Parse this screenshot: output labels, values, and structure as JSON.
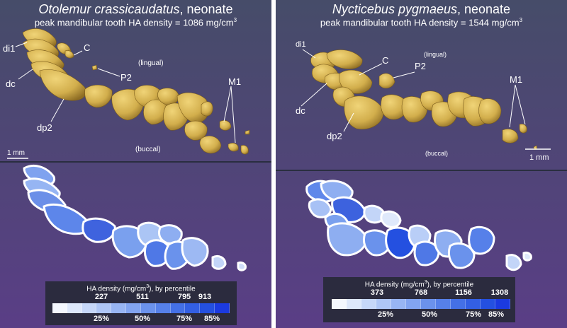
{
  "panels": [
    {
      "species": "Otolemur crassicaudatus",
      "stage": ", neonate",
      "subtitle": "peak mandibular tooth HA density = 1086 mg/cm",
      "superscript": "3",
      "labels": {
        "di1": "di1",
        "c": "C",
        "dc": "dc",
        "p2": "P2",
        "dp2": "dp2",
        "m1": "M1",
        "lingual": "(lingual)",
        "buccal": "(buccal)",
        "scale": "1 mm"
      },
      "legend": {
        "title_a": "HA density (mg/cm",
        "title_sup": "3",
        "title_b": "), by percentile",
        "values": [
          "227",
          "511",
          "795",
          "913"
        ],
        "percentiles": [
          "25%",
          "50%",
          "75%",
          "85%"
        ]
      }
    },
    {
      "species": "Nycticebus pygmaeus",
      "stage": ", neonate",
      "subtitle": "peak mandibular tooth HA density = 1544 mg/cm",
      "superscript": "3",
      "labels": {
        "di1": "di1",
        "c": "C",
        "dc": "dc",
        "p2": "P2",
        "dp2": "dp2",
        "m1": "M1",
        "lingual": "(lingual)",
        "buccal": "(buccal)",
        "scale": "1 mm"
      },
      "legend": {
        "title_a": "HA density (mg/cm",
        "title_sup": "3",
        "title_b": "), by percentile",
        "values": [
          "373",
          "768",
          "1156",
          "1308"
        ],
        "percentiles": [
          "25%",
          "50%",
          "75%",
          "85%"
        ]
      }
    }
  ],
  "colors": {
    "bg_top": "#464c69",
    "bg_bottom": "#5b3d87",
    "tooth": "#d8b755",
    "tooth_shadow": "#8a6a22",
    "density_low": "#dfe9fb",
    "density_high": "#1b3ae0",
    "legend_bg": "#2b2b3e",
    "divider": "#2a2e40"
  },
  "legend_ramp": [
    "#f4f7fe",
    "#dde7fb",
    "#c6d7f9",
    "#afc6f6",
    "#98b5f3",
    "#82a4f0",
    "#6b92ec",
    "#5680e9",
    "#4470e6",
    "#335fe3",
    "#2450e0",
    "#1b3ae0"
  ]
}
